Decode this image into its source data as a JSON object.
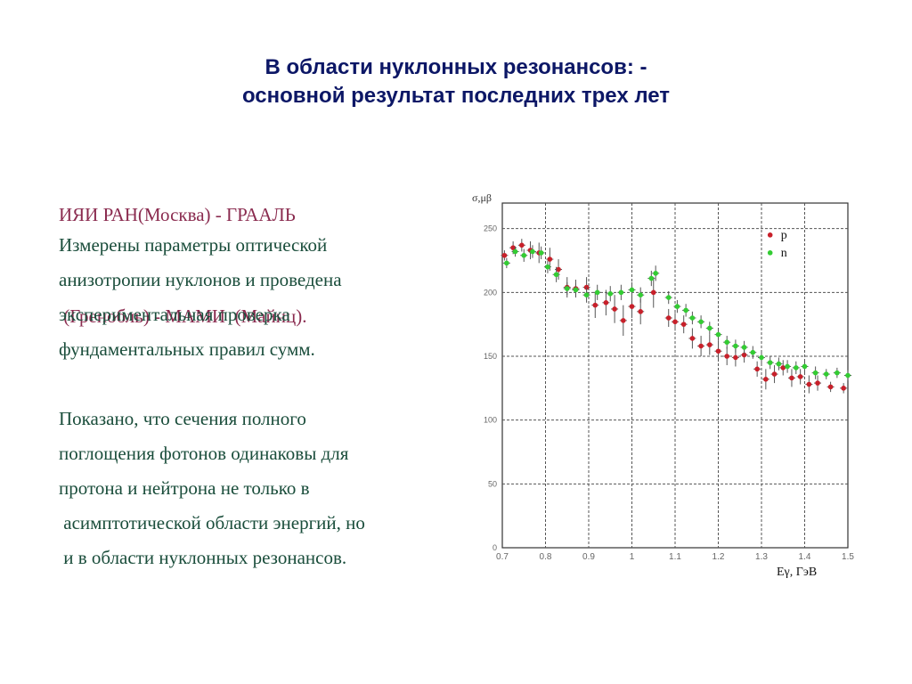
{
  "slide": {
    "title_line1": "В области нуклонных резонансов: -",
    "title_line2": "основной результат последних трех лет",
    "institutions_line1": "ИЯИ РАН(Москва) - ГРААЛЬ",
    "institutions_line2": " (Гренобль) - МАМИ  (Майнц).",
    "p1_line1": "Измерены параметры оптической",
    "p1_line2": "анизотропии нуклонов и проведена",
    "p1_line3": "экспериментальная проверка",
    "p1_line4": "фундаментальных правил сумм.",
    "p2_line1": "Показано, что сечения полного",
    "p2_line2": "поглощения фотонов одинаковы для",
    "p2_line3": "протона и нейтрона не только в",
    "p2_line4": " асимптотической области энергий, но",
    "p2_line5": " и в области нуклонных резонансов."
  },
  "colors": {
    "title": "#0c1766",
    "institutions": "#8a2b4f",
    "body": "#1a4d3b",
    "proton": "#c8202a",
    "neutron": "#33cc33"
  },
  "chart_data": {
    "type": "scatter",
    "ylabel": "σ,μβ",
    "xlabel": "Eγ, ГэВ",
    "xlim": [
      0.7,
      1.5
    ],
    "ylim": [
      0,
      270
    ],
    "grid": true,
    "legend_position": "top-right",
    "x_ticks": [
      0.7,
      0.8,
      0.9,
      1.0,
      1.1,
      1.2,
      1.3,
      1.4,
      1.5
    ],
    "x_tick_labels": [
      "0.7",
      "0.8",
      "0.9",
      "1",
      "1.1",
      "1.2",
      "1.3",
      "1.4",
      "1.5"
    ],
    "y_ticks": [
      0,
      50,
      100,
      150,
      200,
      250
    ],
    "y_tick_labels": [
      "0",
      "50",
      "100",
      "150",
      "200",
      "250"
    ],
    "series": [
      {
        "name": "p",
        "color": "#c8202a",
        "points": [
          [
            0.705,
            229,
            4
          ],
          [
            0.725,
            235,
            5
          ],
          [
            0.745,
            237,
            5
          ],
          [
            0.765,
            233,
            7
          ],
          [
            0.785,
            231,
            8
          ],
          [
            0.81,
            226,
            9
          ],
          [
            0.83,
            218,
            8
          ],
          [
            0.85,
            204,
            8
          ],
          [
            0.87,
            203,
            7
          ],
          [
            0.895,
            204,
            8
          ],
          [
            0.915,
            190,
            10
          ],
          [
            0.94,
            192,
            10
          ],
          [
            0.96,
            187,
            11
          ],
          [
            0.98,
            178,
            12
          ],
          [
            1.0,
            189,
            9
          ],
          [
            1.02,
            185,
            10
          ],
          [
            1.05,
            200,
            12
          ],
          [
            1.085,
            180,
            7
          ],
          [
            1.1,
            177,
            7
          ],
          [
            1.12,
            175,
            7
          ],
          [
            1.14,
            164,
            8
          ],
          [
            1.16,
            158,
            8
          ],
          [
            1.18,
            159,
            8
          ],
          [
            1.2,
            154,
            8
          ],
          [
            1.22,
            150,
            7
          ],
          [
            1.24,
            149,
            7
          ],
          [
            1.26,
            151,
            6
          ],
          [
            1.29,
            140,
            6
          ],
          [
            1.31,
            132,
            8
          ],
          [
            1.33,
            136,
            7
          ],
          [
            1.35,
            141,
            6
          ],
          [
            1.37,
            133,
            7
          ],
          [
            1.39,
            134,
            6
          ],
          [
            1.41,
            128,
            7
          ],
          [
            1.43,
            129,
            6
          ],
          [
            1.46,
            126,
            4
          ],
          [
            1.49,
            125,
            4
          ]
        ]
      },
      {
        "name": "n",
        "color": "#33cc33",
        "points": [
          [
            0.71,
            223,
            4
          ],
          [
            0.73,
            232,
            4
          ],
          [
            0.75,
            229,
            5
          ],
          [
            0.77,
            232,
            5
          ],
          [
            0.79,
            231,
            5
          ],
          [
            0.805,
            220,
            5
          ],
          [
            0.825,
            214,
            6
          ],
          [
            0.85,
            203,
            5
          ],
          [
            0.87,
            202,
            5
          ],
          [
            0.895,
            198,
            6
          ],
          [
            0.92,
            200,
            6
          ],
          [
            0.95,
            199,
            6
          ],
          [
            0.975,
            200,
            6
          ],
          [
            1.0,
            202,
            6
          ],
          [
            1.02,
            198,
            6
          ],
          [
            1.045,
            211,
            6
          ],
          [
            1.055,
            215,
            6
          ],
          [
            1.085,
            196,
            5
          ],
          [
            1.105,
            189,
            5
          ],
          [
            1.125,
            186,
            5
          ],
          [
            1.14,
            180,
            5
          ],
          [
            1.16,
            177,
            5
          ],
          [
            1.18,
            172,
            5
          ],
          [
            1.2,
            167,
            5
          ],
          [
            1.22,
            161,
            5
          ],
          [
            1.24,
            158,
            5
          ],
          [
            1.26,
            157,
            5
          ],
          [
            1.28,
            153,
            5
          ],
          [
            1.3,
            149,
            5
          ],
          [
            1.32,
            145,
            5
          ],
          [
            1.34,
            144,
            5
          ],
          [
            1.36,
            142,
            5
          ],
          [
            1.38,
            141,
            5
          ],
          [
            1.4,
            142,
            5
          ],
          [
            1.425,
            137,
            5
          ],
          [
            1.45,
            136,
            4
          ],
          [
            1.475,
            137,
            4
          ],
          [
            1.5,
            135,
            4
          ]
        ]
      }
    ]
  }
}
